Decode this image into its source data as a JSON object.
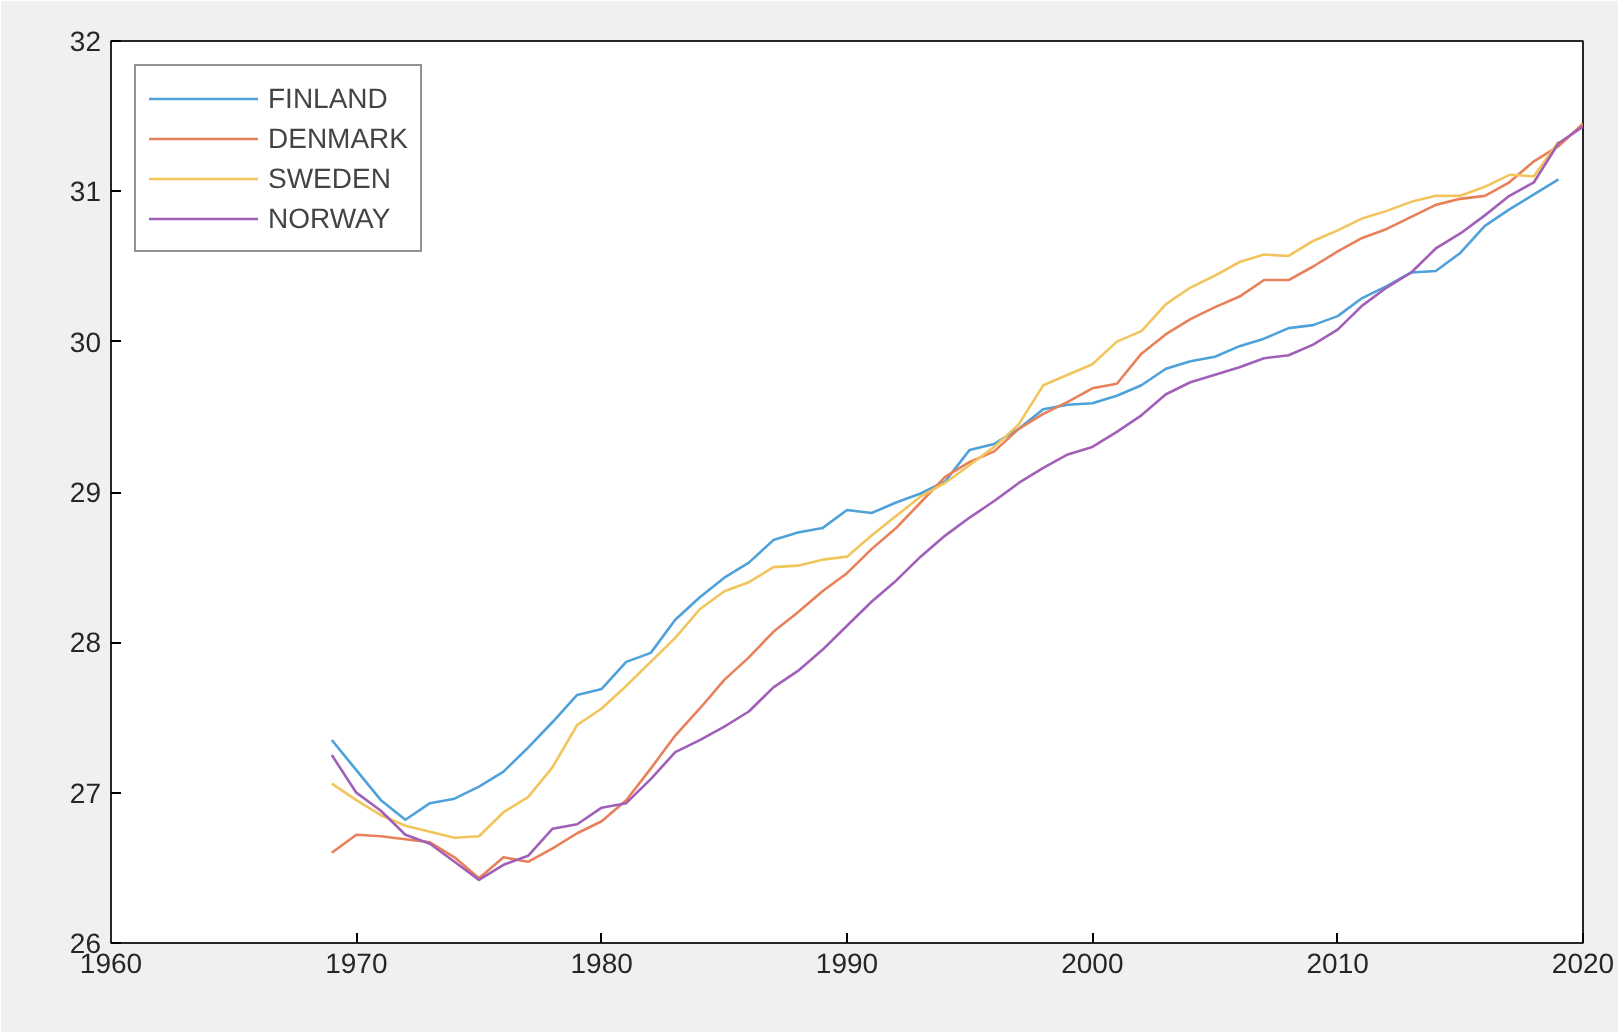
{
  "chart_data": {
    "type": "line",
    "xlim": [
      1960,
      2020
    ],
    "ylim": [
      26,
      32
    ],
    "xticks": [
      1960,
      1970,
      1980,
      1990,
      2000,
      2010,
      2020
    ],
    "yticks": [
      26,
      27,
      28,
      29,
      30,
      31,
      32
    ],
    "grid": false,
    "legend": "top left",
    "line_style": "solid",
    "marker": "none",
    "series": [
      {
        "name": "FINLAND",
        "color": "#4ea1d9",
        "x": [
          1969,
          1970,
          1971,
          1972,
          1973,
          1974,
          1975,
          1976,
          1977,
          1978,
          1979,
          1980,
          1981,
          1982,
          1983,
          1984,
          1985,
          1986,
          1987,
          1988,
          1989,
          1990,
          1991,
          1992,
          1993,
          1994,
          1995,
          1996,
          1997,
          1998,
          1999,
          2000,
          2001,
          2002,
          2003,
          2004,
          2005,
          2006,
          2007,
          2008,
          2009,
          2010,
          2011,
          2012,
          2013,
          2014,
          2015,
          2016,
          2017,
          2018,
          2019
        ],
        "values": [
          27.35,
          27.15,
          26.95,
          26.82,
          26.93,
          26.96,
          27.04,
          27.14,
          27.3,
          27.47,
          27.65,
          27.69,
          27.87,
          27.93,
          28.15,
          28.3,
          28.43,
          28.53,
          28.68,
          28.73,
          28.76,
          28.88,
          28.86,
          28.93,
          28.99,
          29.07,
          29.28,
          29.32,
          29.42,
          29.55,
          29.58,
          29.59,
          29.64,
          29.71,
          29.82,
          29.87,
          29.9,
          29.97,
          30.02,
          30.09,
          30.11,
          30.17,
          30.29,
          30.37,
          30.46,
          30.47,
          30.59,
          30.77,
          30.88,
          30.98,
          31.08
        ]
      },
      {
        "name": "DENMARK",
        "color": "#e8805a",
        "x": [
          1969,
          1970,
          1971,
          1972,
          1973,
          1974,
          1975,
          1976,
          1977,
          1978,
          1979,
          1980,
          1981,
          1982,
          1983,
          1984,
          1985,
          1986,
          1987,
          1988,
          1989,
          1990,
          1991,
          1992,
          1993,
          1994,
          1995,
          1996,
          1997,
          1998,
          1999,
          2000,
          2001,
          2002,
          2003,
          2004,
          2005,
          2006,
          2007,
          2008,
          2009,
          2010,
          2011,
          2012,
          2013,
          2014,
          2015,
          2016,
          2017,
          2018,
          2019,
          2020
        ],
        "values": [
          26.6,
          26.72,
          26.71,
          26.69,
          26.67,
          26.57,
          26.43,
          26.57,
          26.54,
          26.63,
          26.73,
          26.81,
          26.95,
          27.16,
          27.38,
          27.56,
          27.75,
          27.9,
          28.07,
          28.2,
          28.34,
          28.46,
          28.62,
          28.76,
          28.93,
          29.1,
          29.2,
          29.27,
          29.42,
          29.52,
          29.6,
          29.69,
          29.72,
          29.92,
          30.05,
          30.15,
          30.23,
          30.3,
          30.41,
          30.41,
          30.5,
          30.6,
          30.69,
          30.75,
          30.83,
          30.91,
          30.95,
          30.97,
          31.06,
          31.2,
          31.3,
          31.45
        ]
      },
      {
        "name": "SWEDEN",
        "color": "#f2c55c",
        "x": [
          1969,
          1970,
          1971,
          1972,
          1973,
          1974,
          1975,
          1976,
          1977,
          1978,
          1979,
          1980,
          1981,
          1982,
          1983,
          1984,
          1985,
          1986,
          1987,
          1988,
          1989,
          1990,
          1991,
          1992,
          1993,
          1994,
          1995,
          1996,
          1997,
          1998,
          1999,
          2000,
          2001,
          2002,
          2003,
          2004,
          2005,
          2006,
          2007,
          2008,
          2009,
          2010,
          2011,
          2012,
          2013,
          2014,
          2015,
          2016,
          2017,
          2018,
          2019
        ],
        "values": [
          27.06,
          26.95,
          26.85,
          26.78,
          26.74,
          26.7,
          26.71,
          26.87,
          26.97,
          27.17,
          27.45,
          27.56,
          27.71,
          27.87,
          28.03,
          28.22,
          28.34,
          28.4,
          28.5,
          28.51,
          28.55,
          28.57,
          28.71,
          28.84,
          28.97,
          29.06,
          29.18,
          29.3,
          29.45,
          29.71,
          29.78,
          29.85,
          30.0,
          30.07,
          30.25,
          30.36,
          30.44,
          30.53,
          30.58,
          30.57,
          30.67,
          30.74,
          30.82,
          30.87,
          30.93,
          30.97,
          30.97,
          31.03,
          31.11,
          31.1,
          31.33
        ]
      },
      {
        "name": "NORWAY",
        "color": "#a25fb8",
        "x": [
          1969,
          1970,
          1971,
          1972,
          1973,
          1974,
          1975,
          1976,
          1977,
          1978,
          1979,
          1980,
          1981,
          1982,
          1983,
          1984,
          1985,
          1986,
          1987,
          1988,
          1989,
          1990,
          1991,
          1992,
          1993,
          1994,
          1995,
          1996,
          1997,
          1998,
          1999,
          2000,
          2001,
          2002,
          2003,
          2004,
          2005,
          2006,
          2007,
          2008,
          2009,
          2010,
          2011,
          2012,
          2013,
          2014,
          2015,
          2016,
          2017,
          2018,
          2019,
          2020
        ],
        "values": [
          27.25,
          27.0,
          26.88,
          26.72,
          26.66,
          26.54,
          26.42,
          26.52,
          26.58,
          26.76,
          26.79,
          26.9,
          26.93,
          27.09,
          27.27,
          27.35,
          27.44,
          27.54,
          27.7,
          27.81,
          27.95,
          28.11,
          28.27,
          28.41,
          28.57,
          28.71,
          28.83,
          28.94,
          29.06,
          29.16,
          29.25,
          29.3,
          29.4,
          29.51,
          29.65,
          29.73,
          29.78,
          29.83,
          29.89,
          29.91,
          29.98,
          30.08,
          30.24,
          30.36,
          30.46,
          30.62,
          30.72,
          30.84,
          30.97,
          31.06,
          31.32,
          31.43
        ]
      }
    ]
  }
}
